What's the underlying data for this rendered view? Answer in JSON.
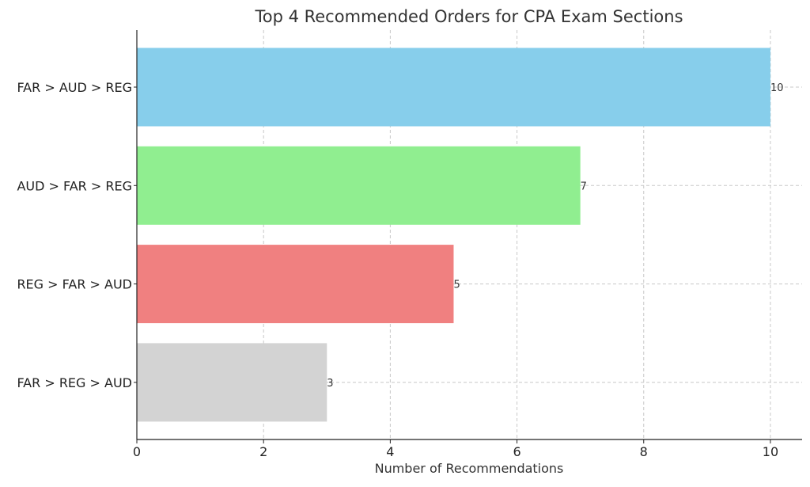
{
  "chart_data": {
    "type": "bar",
    "orientation": "horizontal",
    "title": "Top 4 Recommended Orders for CPA Exam Sections",
    "xlabel": "Number of Recommendations",
    "ylabel": "",
    "categories": [
      "FAR > AUD > REG",
      "AUD > FAR > REG",
      "REG > FAR > AUD",
      "FAR > REG > AUD"
    ],
    "values": [
      10,
      7,
      5,
      3
    ],
    "value_labels": [
      "10",
      "7",
      "5",
      "3"
    ],
    "colors": [
      "#87ceeb",
      "#90ee90",
      "#f08080",
      "#d3d3d3"
    ],
    "xlim": [
      0,
      10.5
    ],
    "xticks": [
      0,
      2,
      4,
      6,
      8,
      10
    ],
    "xtick_labels": [
      "0",
      "2",
      "4",
      "6",
      "8",
      "10"
    ],
    "grid": true,
    "legend": "none"
  }
}
